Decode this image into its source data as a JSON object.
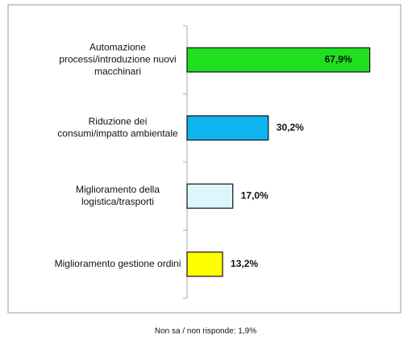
{
  "chart_data": {
    "type": "barh",
    "categories": [
      [
        "Automazione",
        "processi/introduzione nuovi",
        "macchinari"
      ],
      [
        "Riduzione dei",
        "consumi/impatto ambientale"
      ],
      [
        "Miglioramento della",
        "logistica/trasporti"
      ],
      [
        "Miglioramento gestione ordini"
      ]
    ],
    "values": [
      67.9,
      30.2,
      17.0,
      13.2
    ],
    "value_labels": [
      "67,9%",
      "30,2%",
      "17,0%",
      "13,2%"
    ],
    "colors": [
      "#1fe01f",
      "#10b4ee",
      "#dcf7fb",
      "#ffff00"
    ],
    "xlim": [
      0,
      80
    ],
    "footnote": "Non sa / non risponde: 1,9%"
  }
}
